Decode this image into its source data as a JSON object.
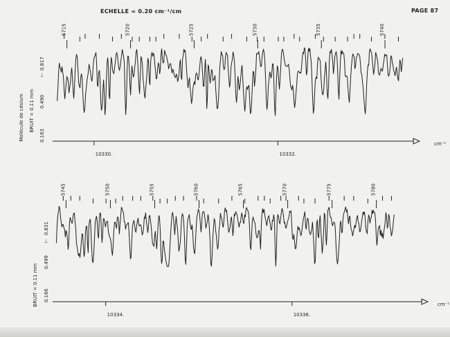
{
  "page": {
    "scale_label": "ECHELLE = 0.20 cm⁻¹/cm",
    "page_number": "PAGE 87"
  },
  "colors": {
    "trace": "#1e1e1e",
    "axis": "#222222",
    "paper": "#f1f1ee"
  },
  "chart_data": [
    {
      "type": "line",
      "title": "",
      "molecule_label": "Molécule de césium",
      "noise_label": "BRUIT = 0.11 mm",
      "y_ticks": [
        "0.163",
        "0.490",
        "0.817"
      ],
      "y_marker": "⊢",
      "x_unit": "cm⁻¹",
      "x_ticks": [
        {
          "value": 10330.0,
          "label": "10330."
        },
        {
          "value": 10332.0,
          "label": "10332."
        }
      ],
      "line_numbers": [
        {
          "value": "5715"
        },
        {
          "value": "5720"
        },
        {
          "value": "5725"
        },
        {
          "value": "5730"
        },
        {
          "value": "5735"
        },
        {
          "value": "5740"
        }
      ],
      "xlim": [
        10329.55,
        10333.48
      ],
      "trace_span": [
        10329.6,
        10333.36
      ],
      "seed": 17
    },
    {
      "type": "line",
      "title": "",
      "molecule_label": "",
      "noise_label": "BRUIT = 0.11 mm",
      "y_ticks": [
        "0.166",
        "0.499",
        "0.831"
      ],
      "y_marker": "⊢",
      "x_unit": "cm⁻¹",
      "x_ticks": [
        {
          "value": 10334.0,
          "label": "10334."
        },
        {
          "value": 10336.0,
          "label": "10336."
        }
      ],
      "line_numbers": [
        {
          "value": "5745"
        },
        {
          "value": "5750"
        },
        {
          "value": "5755"
        },
        {
          "value": "5760"
        },
        {
          "value": "5765"
        },
        {
          "value": "5770"
        },
        {
          "value": "5775"
        },
        {
          "value": "5780"
        }
      ],
      "xlim": [
        10333.43,
        10337.4
      ],
      "trace_span": [
        10333.47,
        10337.1
      ],
      "seed": 53
    }
  ]
}
